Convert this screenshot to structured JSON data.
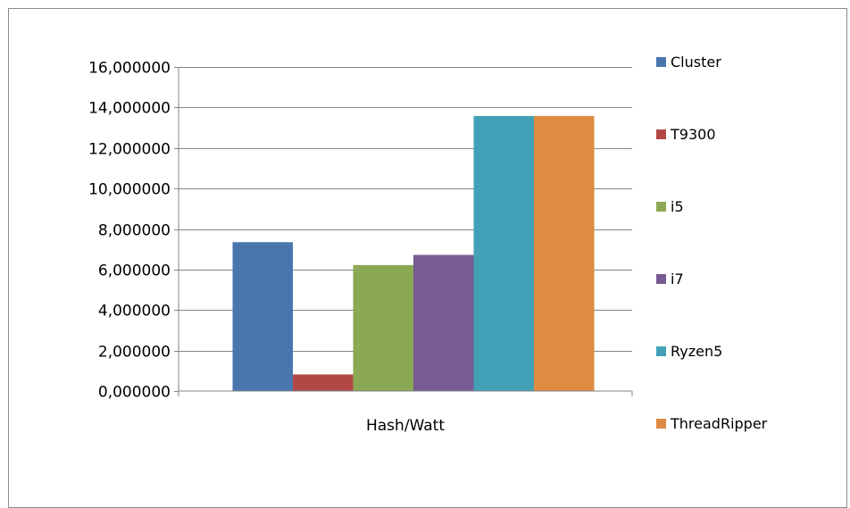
{
  "chart_data": {
    "type": "bar",
    "categories": [
      "Hash/Watt"
    ],
    "series": [
      {
        "name": "Cluster",
        "values": [
          7.35
        ],
        "color": "#4a76ae"
      },
      {
        "name": "T9300",
        "values": [
          0.82
        ],
        "color": "#b24845"
      },
      {
        "name": "i5",
        "values": [
          6.22
        ],
        "color": "#8ba854"
      },
      {
        "name": "i7",
        "values": [
          6.72
        ],
        "color": "#785b93"
      },
      {
        "name": "Ryzen5",
        "values": [
          13.58
        ],
        "color": "#43a1b7"
      },
      {
        "name": "ThreadRipper",
        "values": [
          13.58
        ],
        "color": "#df8b42"
      }
    ],
    "yticks": [
      "0,000000",
      "2,000000",
      "4,000000",
      "6,000000",
      "8,000000",
      "10,000000",
      "12,000000",
      "14,000000",
      "16,000000"
    ],
    "ylim": [
      0,
      16
    ],
    "ytick_step": 2,
    "grid": "horizontal",
    "legend_position": "right",
    "title": "",
    "xlabel": "",
    "ylabel": ""
  }
}
